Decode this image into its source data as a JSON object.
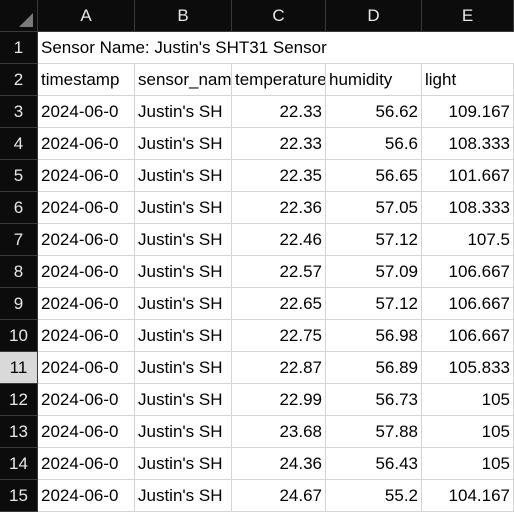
{
  "columns": [
    "A",
    "B",
    "C",
    "D",
    "E"
  ],
  "title_row": {
    "row": "1",
    "text": "Sensor Name: Justin's SHT31 Sensor"
  },
  "header_row": {
    "row": "2",
    "cells": [
      "timestamp",
      "sensor_name",
      "temperature",
      "humidity",
      "light"
    ]
  },
  "rows": [
    {
      "row": "3",
      "cells": [
        "2024-06-0",
        "Justin's SH",
        "22.33",
        "56.62",
        "109.167"
      ]
    },
    {
      "row": "4",
      "cells": [
        "2024-06-0",
        "Justin's SH",
        "22.33",
        "56.6",
        "108.333"
      ]
    },
    {
      "row": "5",
      "cells": [
        "2024-06-0",
        "Justin's SH",
        "22.35",
        "56.65",
        "101.667"
      ]
    },
    {
      "row": "6",
      "cells": [
        "2024-06-0",
        "Justin's SH",
        "22.36",
        "57.05",
        "108.333"
      ]
    },
    {
      "row": "7",
      "cells": [
        "2024-06-0",
        "Justin's SH",
        "22.46",
        "57.12",
        "107.5"
      ]
    },
    {
      "row": "8",
      "cells": [
        "2024-06-0",
        "Justin's SH",
        "22.57",
        "57.09",
        "106.667"
      ]
    },
    {
      "row": "9",
      "cells": [
        "2024-06-0",
        "Justin's SH",
        "22.65",
        "57.12",
        "106.667"
      ]
    },
    {
      "row": "10",
      "cells": [
        "2024-06-0",
        "Justin's SH",
        "22.75",
        "56.98",
        "106.667"
      ]
    },
    {
      "row": "11",
      "cells": [
        "2024-06-0",
        "Justin's SH",
        "22.87",
        "56.89",
        "105.833"
      ]
    },
    {
      "row": "12",
      "cells": [
        "2024-06-0",
        "Justin's SH",
        "22.99",
        "56.73",
        "105"
      ]
    },
    {
      "row": "13",
      "cells": [
        "2024-06-0",
        "Justin's SH",
        "23.68",
        "57.88",
        "105"
      ]
    },
    {
      "row": "14",
      "cells": [
        "2024-06-0",
        "Justin's SH",
        "24.36",
        "56.43",
        "105"
      ]
    },
    {
      "row": "15",
      "cells": [
        "2024-06-0",
        "Justin's SH",
        "24.67",
        "55.2",
        "104.167"
      ]
    }
  ],
  "selected_row": "11",
  "colors": {
    "header_bg": "#0c0c0c",
    "header_text": "#e8e8e8",
    "selected_row_header": "#d9d9d9",
    "gridline": "#d4d4d4"
  }
}
